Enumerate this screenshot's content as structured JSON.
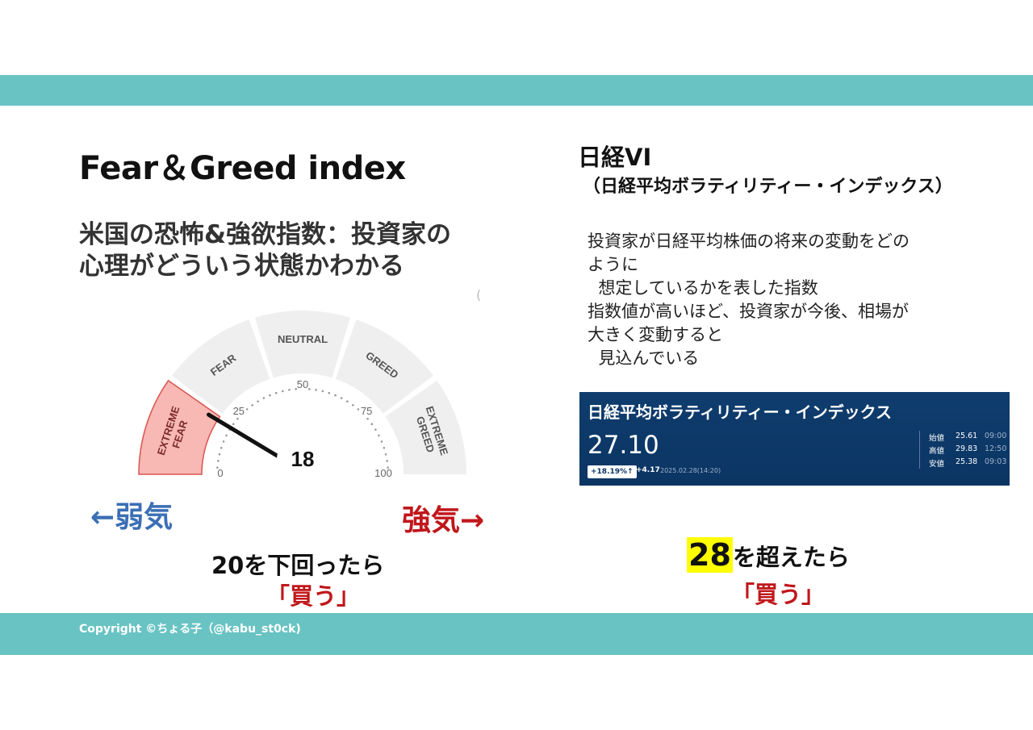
{
  "left": {
    "title": "Fear＆Greed index",
    "subtitle_line1": "米国の恐怖&強欲指数：投資家の",
    "subtitle_line2": "心理がどういう状態かわかる",
    "paren_mark": "(",
    "weak_label": "←弱気",
    "strong_label": "強気→",
    "condition": "20を下回ったら",
    "buy": "「買う」"
  },
  "gauge": {
    "value": 18,
    "min_label": "0",
    "max_label": "100",
    "tick_labels": [
      "0",
      "25",
      "50",
      "75",
      "100"
    ],
    "segments": [
      "EXTREME FEAR",
      "FEAR",
      "NEUTRAL",
      "GREED",
      "EXTREME GREED"
    ],
    "active_segment": "EXTREME FEAR",
    "colors": {
      "active": "#f8b8b4",
      "active_border": "#d9534f",
      "inactive": "#efefef"
    }
  },
  "right": {
    "title": "日経VI",
    "subtitle": "（日経平均ボラティリティー・インデックス）",
    "description": [
      "投資家が日経平均株価の将来の変動をどの",
      "ように",
      "  想定しているかを表した指数",
      "指数値が高いほど、投資家が今後、相場が",
      "大きく変動すると",
      "  見込んでいる"
    ],
    "condition_number": "28",
    "condition_text": "を超えたら",
    "buy": "「買う」"
  },
  "vi_card": {
    "title": "日経平均ボラティリティー・インデックス",
    "value": "27.10",
    "change_pct": "+18.19%",
    "change_arrow": "↑",
    "change": "+4.17",
    "datetime": "2025.02.28(14:20)",
    "rows": [
      {
        "label": "始値",
        "value": "25.61",
        "time": "09:00"
      },
      {
        "label": "高値",
        "value": "29.83",
        "time": "12:50"
      },
      {
        "label": "安値",
        "value": "25.38",
        "time": "09:03"
      }
    ]
  },
  "footer": {
    "copyright": "Copyright ©ちょる子（@kabu_st0ck)"
  },
  "colors": {
    "band": "#69c3c3",
    "weak": "#3b6fb5",
    "strong": "#c0171b",
    "highlight": "#ffff00",
    "vi_card_bg": "#0b3563"
  }
}
